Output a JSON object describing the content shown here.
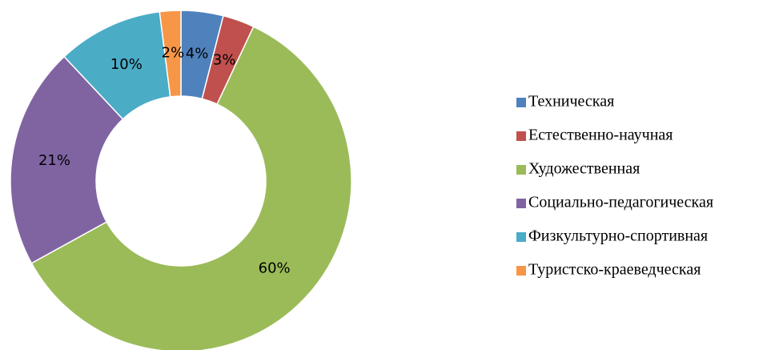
{
  "chart_data": {
    "type": "donut",
    "categories": [
      "Техническая",
      "Естественно-научная",
      "Художественная",
      "Социально-педагогическая",
      "Физкультурно-спортивная",
      "Туристско-краеведческая"
    ],
    "values": [
      4,
      3,
      60,
      21,
      10,
      2
    ],
    "value_labels": [
      "4%",
      "3%",
      "60%",
      "21%",
      "10%",
      "2%"
    ],
    "colors": [
      "#4f81bd",
      "#c0504d",
      "#9bbb59",
      "#8064a2",
      "#4bacc6",
      "#f79646"
    ],
    "legend": "right"
  }
}
